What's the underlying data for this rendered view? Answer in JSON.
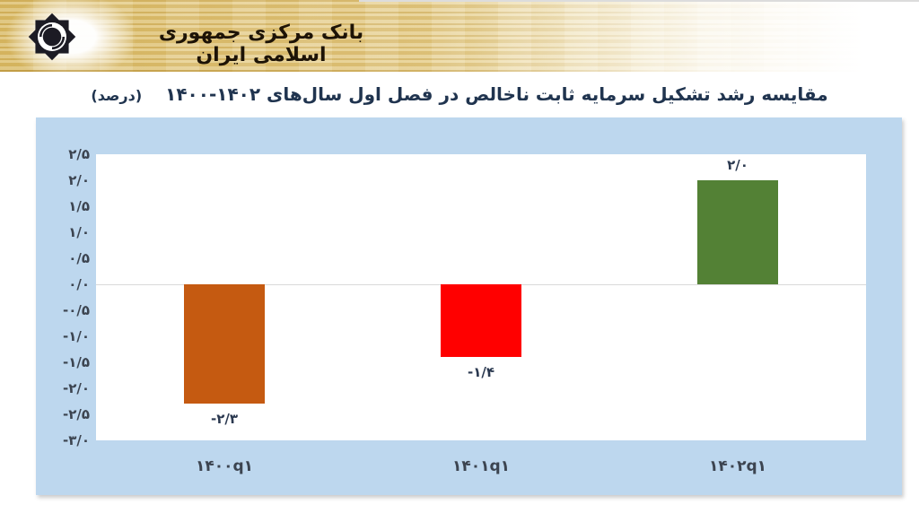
{
  "header": {
    "bank_name": "بانک مرکزی جمهوری اسلامی ایران",
    "logo": "central-bank-of-iran-emblem"
  },
  "title": {
    "text": "مقایسه رشد تشکیل سرمایه ثابت ناخالص در فصل اول سال‌های ۱۴۰۲-۱۴۰۰",
    "unit": "(درصد)"
  },
  "colors": {
    "header_gold": "#DFC278",
    "chart_background": "#BDD7EE",
    "plot_background": "#FFFFFF",
    "zero_line": "#D9D9D9",
    "title_text": "#20344F",
    "axis_text": "#3C4450"
  },
  "chart_data": {
    "type": "bar",
    "title": "مقایسه رشد تشکیل سرمایه ثابت ناخالص در فصل اول سال‌های ۱۴۰۲-۱۴۰۰",
    "unit_label": "(درصد)",
    "categories": [
      "۱۴۰۰q۱",
      "۱۴۰۱q۱",
      "۱۴۰۲q۱"
    ],
    "values": [
      -2.3,
      -1.4,
      2.0
    ],
    "value_labels": [
      "-۲/۳",
      "-۱/۴",
      "۲/۰"
    ],
    "bar_colors": [
      "#C55A11",
      "#FF0000",
      "#538135"
    ],
    "ylim": [
      -3.0,
      2.5
    ],
    "y_tick_step": 0.5,
    "y_ticks": [
      {
        "value": 2.5,
        "label": "۲/۵"
      },
      {
        "value": 2.0,
        "label": "۲/۰"
      },
      {
        "value": 1.5,
        "label": "۱/۵"
      },
      {
        "value": 1.0,
        "label": "۱/۰"
      },
      {
        "value": 0.5,
        "label": "۰/۵"
      },
      {
        "value": 0.0,
        "label": "۰/۰"
      },
      {
        "value": -0.5,
        "label": "-۰/۵"
      },
      {
        "value": -1.0,
        "label": "-۱/۰"
      },
      {
        "value": -1.5,
        "label": "-۱/۵"
      },
      {
        "value": -2.0,
        "label": "-۲/۰"
      },
      {
        "value": -2.5,
        "label": "-۲/۵"
      },
      {
        "value": -3.0,
        "label": "-۳/۰"
      }
    ],
    "grid": "zero-line-only",
    "legend": "none",
    "xlabel": "",
    "ylabel": ""
  }
}
